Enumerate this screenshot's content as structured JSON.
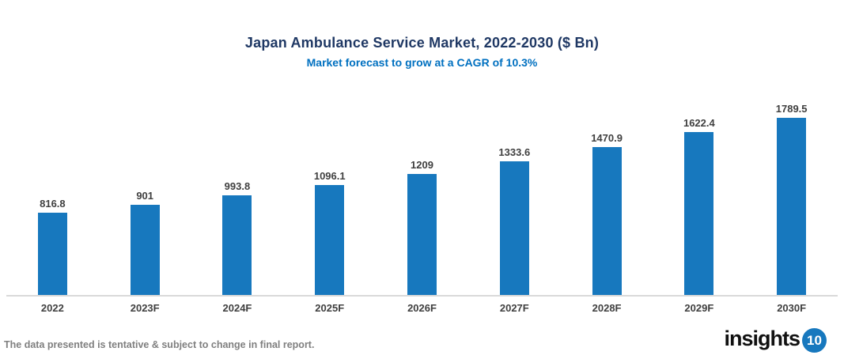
{
  "header": {
    "title": "Japan Ambulance Service Market, 2022-2030 ($ Bn)",
    "subtitle": "Market forecast to grow at a CAGR of 10.3%"
  },
  "chart_data": {
    "type": "bar",
    "title": "Japan Ambulance Service Market, 2022-2030 ($ Bn)",
    "subtitle": "Market forecast to grow at a CAGR of 10.3%",
    "categories": [
      "2022",
      "2023F",
      "2024F",
      "2025F",
      "2026F",
      "2027F",
      "2028F",
      "2029F",
      "2030F"
    ],
    "values": [
      816.8,
      901,
      993.8,
      1096.1,
      1209,
      1333.6,
      1470.9,
      1622.4,
      1789.5
    ],
    "value_labels": [
      "816.8",
      "901",
      "993.8",
      "1096.1",
      "1209",
      "1333.6",
      "1470.9",
      "1622.4",
      "1789.5"
    ],
    "xlabel": "",
    "ylabel": "",
    "ylim": [
      0,
      1789.5
    ],
    "grid": false,
    "legend": false,
    "bar_color": "#1778be",
    "axis_line_color": "#d9d9d9",
    "label_color": "#3f3f3f"
  },
  "footer": {
    "note": "The data presented is tentative & subject to change in final report.",
    "logo_text": "insights",
    "logo_badge": "10",
    "logo_badge_color": "#1778be"
  },
  "colors": {
    "title": "#1f3864",
    "subtitle": "#0070c0",
    "bar": "#1778be"
  }
}
